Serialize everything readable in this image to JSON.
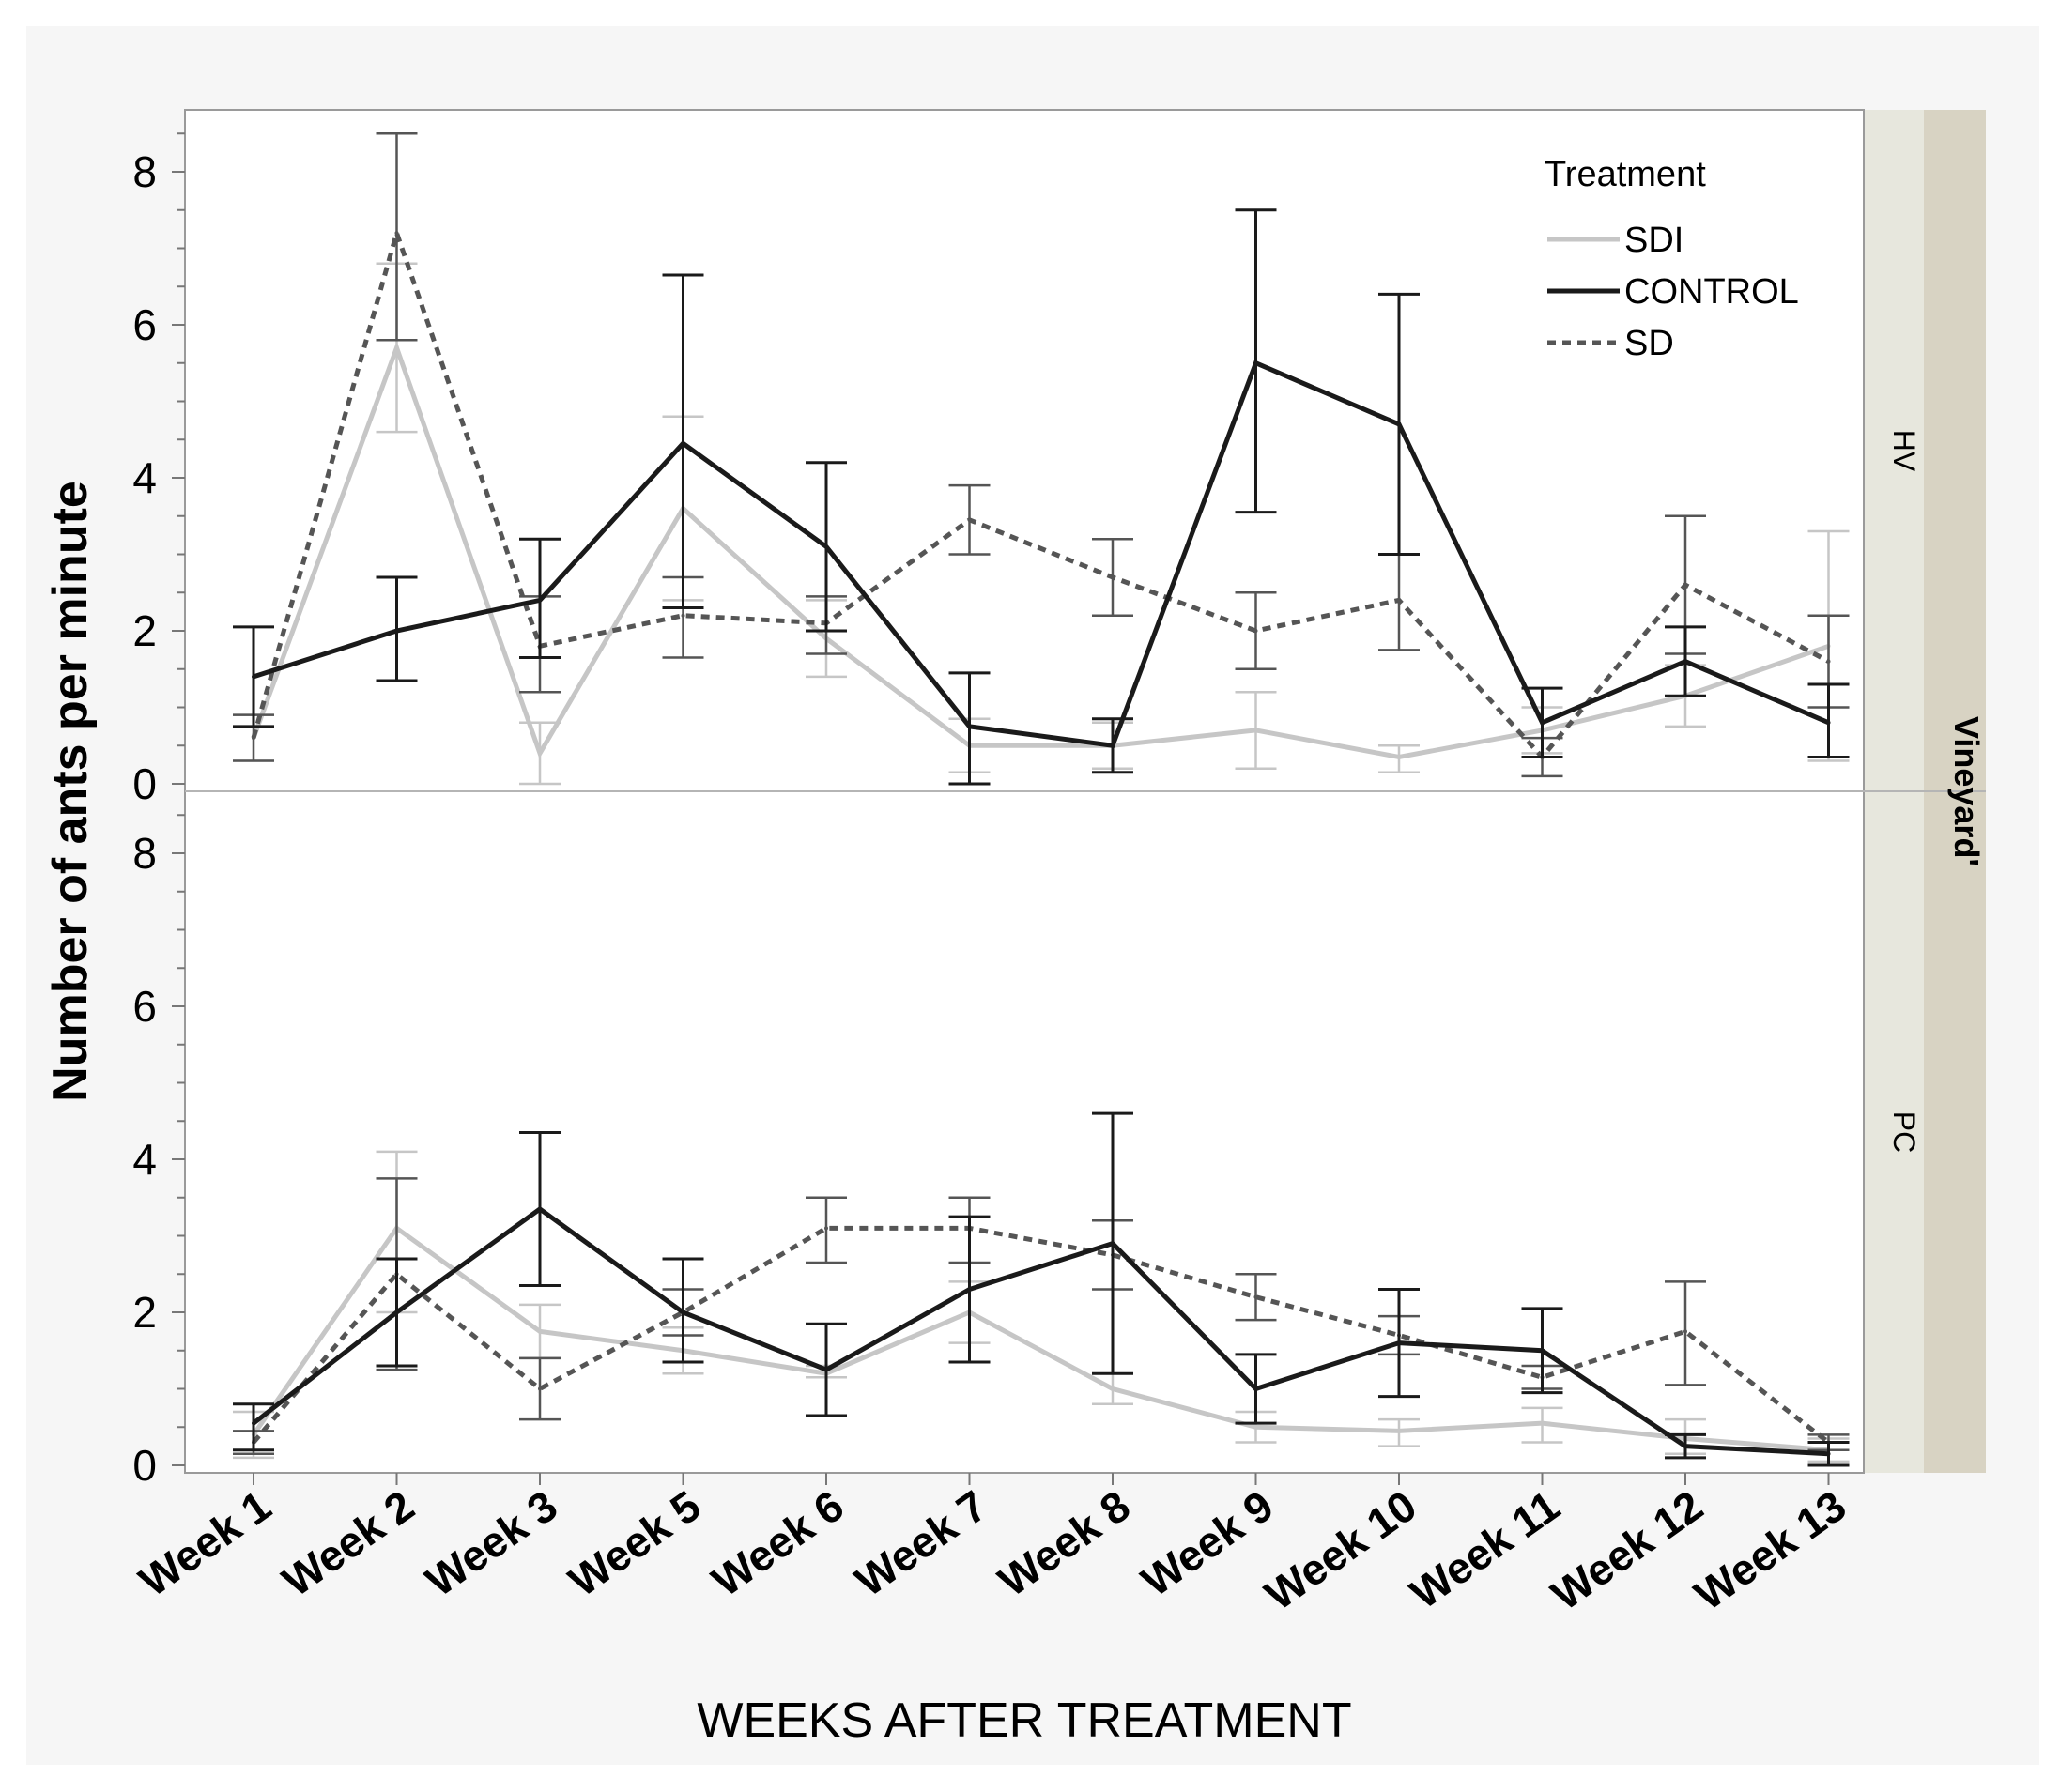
{
  "chart_data": {
    "type": "line",
    "ylabel": "Number of ants per minute",
    "xlabel": "WEEKS AFTER TREATMENT",
    "ylim": [
      0,
      8.8
    ],
    "yticks": [
      0,
      2,
      4,
      6,
      8
    ],
    "categories": [
      "Week 1",
      "Week 2",
      "Week 3",
      "Week 5",
      "Week 6",
      "Week 7",
      "Week 8",
      "Week 9",
      "Week 10",
      "Week 11",
      "Week 12",
      "Week 13"
    ],
    "facet_title": "Vineyard'",
    "legend": {
      "title": "Treatment",
      "entries": [
        "SDI",
        "CONTROL",
        "SD"
      ],
      "colors": [
        "#c6c6c6",
        "#1a1a1a",
        "#555555"
      ],
      "styles": [
        "solid",
        "solid",
        "dotted"
      ]
    },
    "panels": [
      {
        "name": "HV",
        "series": [
          {
            "name": "SDI",
            "values": [
              0.6,
              5.7,
              0.4,
              3.6,
              1.9,
              0.5,
              0.5,
              0.7,
              0.35,
              0.7,
              1.15,
              1.8
            ],
            "err_low": [
              0.3,
              4.6,
              0.0,
              2.4,
              1.4,
              0.15,
              0.2,
              0.2,
              0.15,
              0.4,
              0.75,
              0.3
            ],
            "err_high": [
              0.9,
              6.8,
              0.8,
              4.8,
              2.4,
              0.85,
              0.8,
              1.2,
              0.5,
              1.0,
              1.55,
              3.3
            ]
          },
          {
            "name": "CONTROL",
            "values": [
              1.4,
              2.0,
              2.4,
              4.45,
              3.1,
              0.75,
              0.5,
              5.5,
              4.7,
              0.8,
              1.6,
              0.8
            ],
            "err_low": [
              0.75,
              1.35,
              1.65,
              2.3,
              2.0,
              0.0,
              0.15,
              3.55,
              3.0,
              0.35,
              1.15,
              0.35
            ],
            "err_high": [
              2.05,
              2.7,
              3.2,
              6.65,
              4.2,
              1.45,
              0.85,
              7.5,
              6.4,
              1.25,
              2.05,
              1.3
            ]
          },
          {
            "name": "SD",
            "values": [
              0.6,
              7.2,
              1.8,
              2.2,
              2.1,
              3.45,
              2.7,
              2.0,
              2.4,
              0.35,
              2.6,
              1.6
            ],
            "err_low": [
              0.3,
              5.8,
              1.2,
              1.65,
              1.7,
              3.0,
              2.2,
              1.5,
              1.75,
              0.1,
              1.7,
              1.0
            ],
            "err_high": [
              0.9,
              8.5,
              2.45,
              2.7,
              2.45,
              3.9,
              3.2,
              2.5,
              3.0,
              0.6,
              3.5,
              2.2
            ]
          }
        ]
      },
      {
        "name": "PC",
        "series": [
          {
            "name": "SDI",
            "values": [
              0.4,
              3.1,
              1.75,
              1.5,
              1.2,
              2.0,
              1.0,
              0.5,
              0.45,
              0.55,
              0.35,
              0.2
            ],
            "err_low": [
              0.1,
              2.0,
              1.4,
              1.2,
              1.15,
              1.6,
              0.8,
              0.3,
              0.25,
              0.3,
              0.15,
              0.05
            ],
            "err_high": [
              0.7,
              4.1,
              2.1,
              1.8,
              1.3,
              2.4,
              1.2,
              0.7,
              0.6,
              0.75,
              0.6,
              0.35
            ]
          },
          {
            "name": "CONTROL",
            "values": [
              0.55,
              2.0,
              3.35,
              2.0,
              1.25,
              2.3,
              2.9,
              1.0,
              1.6,
              1.5,
              0.25,
              0.15
            ],
            "err_low": [
              0.2,
              1.3,
              2.35,
              1.35,
              0.65,
              1.35,
              1.2,
              0.55,
              0.9,
              0.95,
              0.1,
              0.0
            ],
            "err_high": [
              0.8,
              2.7,
              4.35,
              2.7,
              1.85,
              3.25,
              4.6,
              1.45,
              2.3,
              2.05,
              0.4,
              0.3
            ]
          },
          {
            "name": "SD",
            "values": [
              0.3,
              2.5,
              1.0,
              2.0,
              3.1,
              3.1,
              2.75,
              2.2,
              1.7,
              1.15,
              1.75,
              0.3
            ],
            "err_low": [
              0.15,
              1.25,
              0.6,
              1.7,
              2.65,
              2.65,
              2.3,
              1.9,
              1.45,
              1.0,
              1.05,
              0.2
            ],
            "err_high": [
              0.45,
              3.75,
              1.4,
              2.3,
              3.5,
              3.5,
              3.2,
              2.5,
              1.95,
              1.3,
              2.4,
              0.4
            ]
          }
        ]
      }
    ]
  }
}
